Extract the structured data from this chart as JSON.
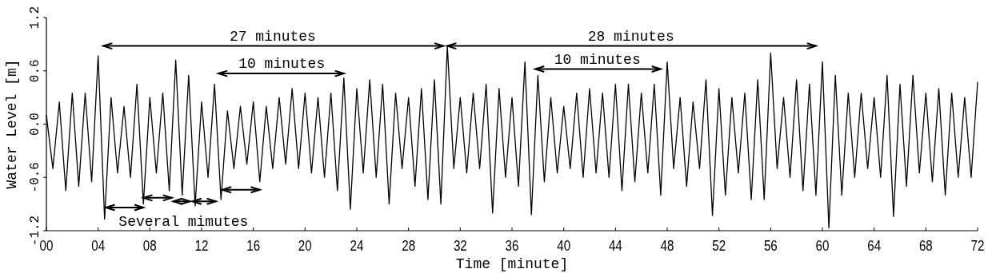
{
  "chart_data": {
    "type": "line",
    "xlabel": "Time [minute]",
    "ylabel": "Water Level [m]",
    "xlim": [
      0,
      72
    ],
    "xticks": [
      {
        "value": 0,
        "label": "00"
      },
      {
        "value": 4,
        "label": "04"
      },
      {
        "value": 8,
        "label": "08"
      },
      12,
      16,
      20,
      24,
      28,
      32,
      36,
      40,
      44,
      48,
      52,
      56,
      60,
      64,
      68,
      72
    ],
    "ylim": [
      -1.2,
      1.2
    ],
    "yticks": [
      -1.2,
      -0.6,
      {
        "value": 0,
        "label": "0.0"
      },
      0.6,
      1.2
    ],
    "grid": false,
    "marker": "none",
    "line_style": "solid",
    "series": [
      {
        "color": "#000000",
        "x": [
          0,
          0.5,
          1,
          1.5,
          2,
          2.5,
          3,
          3.5,
          4,
          4.5,
          5,
          5.5,
          6,
          6.5,
          7,
          7.5,
          8,
          8.5,
          9,
          9.5,
          10,
          10.5,
          11,
          11.5,
          12,
          12.5,
          13,
          13.5,
          14,
          14.5,
          15,
          15.5,
          16,
          16.5,
          17,
          17.5,
          18,
          18.5,
          19,
          19.5,
          20,
          20.5,
          21,
          21.5,
          22,
          22.5,
          23,
          23.5,
          24,
          24.5,
          25,
          25.5,
          26,
          26.5,
          27,
          27.5,
          28,
          28.5,
          29,
          29.5,
          30,
          30.5,
          31,
          31.5,
          32,
          32.5,
          33,
          33.5,
          34,
          34.5,
          35,
          35.5,
          36,
          36.5,
          37,
          37.5,
          38,
          38.5,
          39,
          39.5,
          40,
          40.5,
          41,
          41.5,
          42,
          42.5,
          43,
          43.5,
          44,
          44.5,
          45,
          45.5,
          46,
          46.5,
          47,
          47.5,
          48,
          48.5,
          49,
          49.5,
          50,
          50.5,
          51,
          51.5,
          52,
          52.5,
          53,
          53.5,
          54,
          54.5,
          55,
          55.5,
          56,
          56.5,
          57,
          57.5,
          58,
          58.5,
          59,
          59.5,
          60,
          60.5,
          61,
          61.5,
          62,
          62.5,
          63,
          63.5,
          64,
          64.5,
          65,
          65.5,
          66,
          66.5,
          67,
          67.5,
          68,
          68.5,
          69,
          69.5,
          70,
          70.5,
          71,
          71.5,
          72
        ],
        "values": [
          0.1,
          -0.5,
          0.25,
          -0.75,
          0.35,
          -0.7,
          0.35,
          -0.65,
          0.77,
          -1.07,
          0.3,
          -0.55,
          0.2,
          -0.6,
          0.45,
          -0.9,
          0.3,
          -0.55,
          0.35,
          -0.75,
          0.72,
          -0.8,
          0.55,
          -0.92,
          0.25,
          -0.6,
          0.45,
          -0.85,
          0.15,
          -0.5,
          0.2,
          -0.45,
          0.25,
          -0.65,
          0.2,
          -0.5,
          0.3,
          -0.45,
          0.4,
          -0.5,
          0.35,
          -0.55,
          0.3,
          -0.6,
          0.35,
          -0.75,
          0.52,
          -0.96,
          0.4,
          -0.55,
          0.5,
          -0.6,
          0.45,
          -0.9,
          0.35,
          -0.5,
          0.3,
          -0.7,
          0.4,
          -0.85,
          0.5,
          -0.9,
          0.88,
          -0.5,
          0.3,
          -0.55,
          0.35,
          -0.5,
          0.45,
          -1.0,
          0.4,
          -0.6,
          0.3,
          -0.7,
          0.7,
          -1.02,
          0.55,
          -0.65,
          0.3,
          -0.55,
          0.2,
          -0.5,
          0.35,
          -0.6,
          0.4,
          -0.55,
          0.35,
          -0.6,
          0.45,
          -0.75,
          0.45,
          -0.65,
          0.35,
          -0.55,
          0.45,
          -0.8,
          0.7,
          -0.5,
          0.3,
          -0.7,
          0.25,
          -0.5,
          0.5,
          -1.03,
          0.4,
          -0.8,
          0.3,
          -0.55,
          0.35,
          -0.85,
          0.5,
          -0.85,
          0.8,
          -0.5,
          0.3,
          -0.6,
          0.5,
          -0.75,
          0.45,
          -0.8,
          0.7,
          -1.17,
          0.55,
          -0.8,
          0.35,
          -0.6,
          0.35,
          -0.5,
          0.3,
          -0.6,
          0.55,
          -1.04,
          0.45,
          -0.7,
          0.55,
          -0.55,
          0.35,
          -0.65,
          0.4,
          -0.8,
          0.35,
          -0.6,
          0.3,
          -0.6,
          0.47
        ]
      }
    ],
    "annotations": [
      "27 minutes",
      "10 minutes",
      "28 minutes",
      "10 minutes",
      "Several mimutes"
    ]
  }
}
